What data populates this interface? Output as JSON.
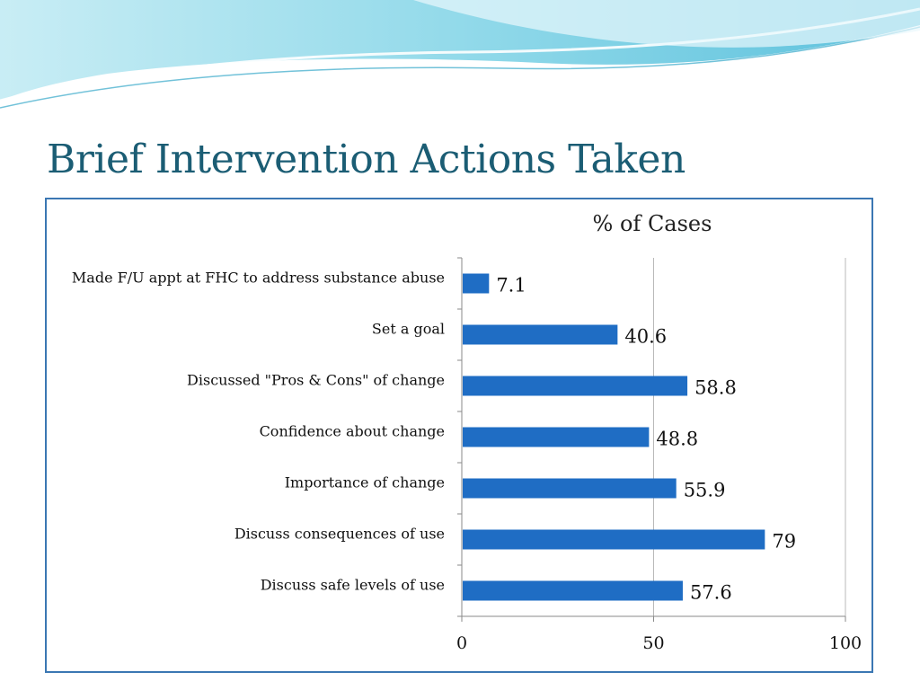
{
  "slide": {
    "title": "Brief Intervention Actions Taken",
    "colors": {
      "title": "#1b5d74",
      "bar": "#1f6dc4",
      "frame": "#3b77b3",
      "wave": "#5cc4dc"
    }
  },
  "chart_data": {
    "type": "bar",
    "orientation": "horizontal",
    "title": "% of Cases",
    "xlabel": "",
    "ylabel": "",
    "categories": [
      "Made F/U appt at FHC to address substance abuse",
      "Set a goal",
      "Discussed \"Pros & Cons\" of change",
      "Confidence about change",
      "Importance of change",
      "Discuss consequences of use",
      "Discuss safe levels of use"
    ],
    "values": [
      7.1,
      40.6,
      58.8,
      48.8,
      55.9,
      79,
      57.6
    ],
    "value_labels": [
      "7.1",
      "40.6",
      "58.8",
      "48.8",
      "55.9",
      "79",
      "57.6"
    ],
    "xlim": [
      0,
      100
    ],
    "xticks": [
      0,
      50,
      100
    ],
    "xtick_labels": [
      "0",
      "50",
      "100"
    ],
    "grid": "vertical",
    "legend": "none"
  }
}
